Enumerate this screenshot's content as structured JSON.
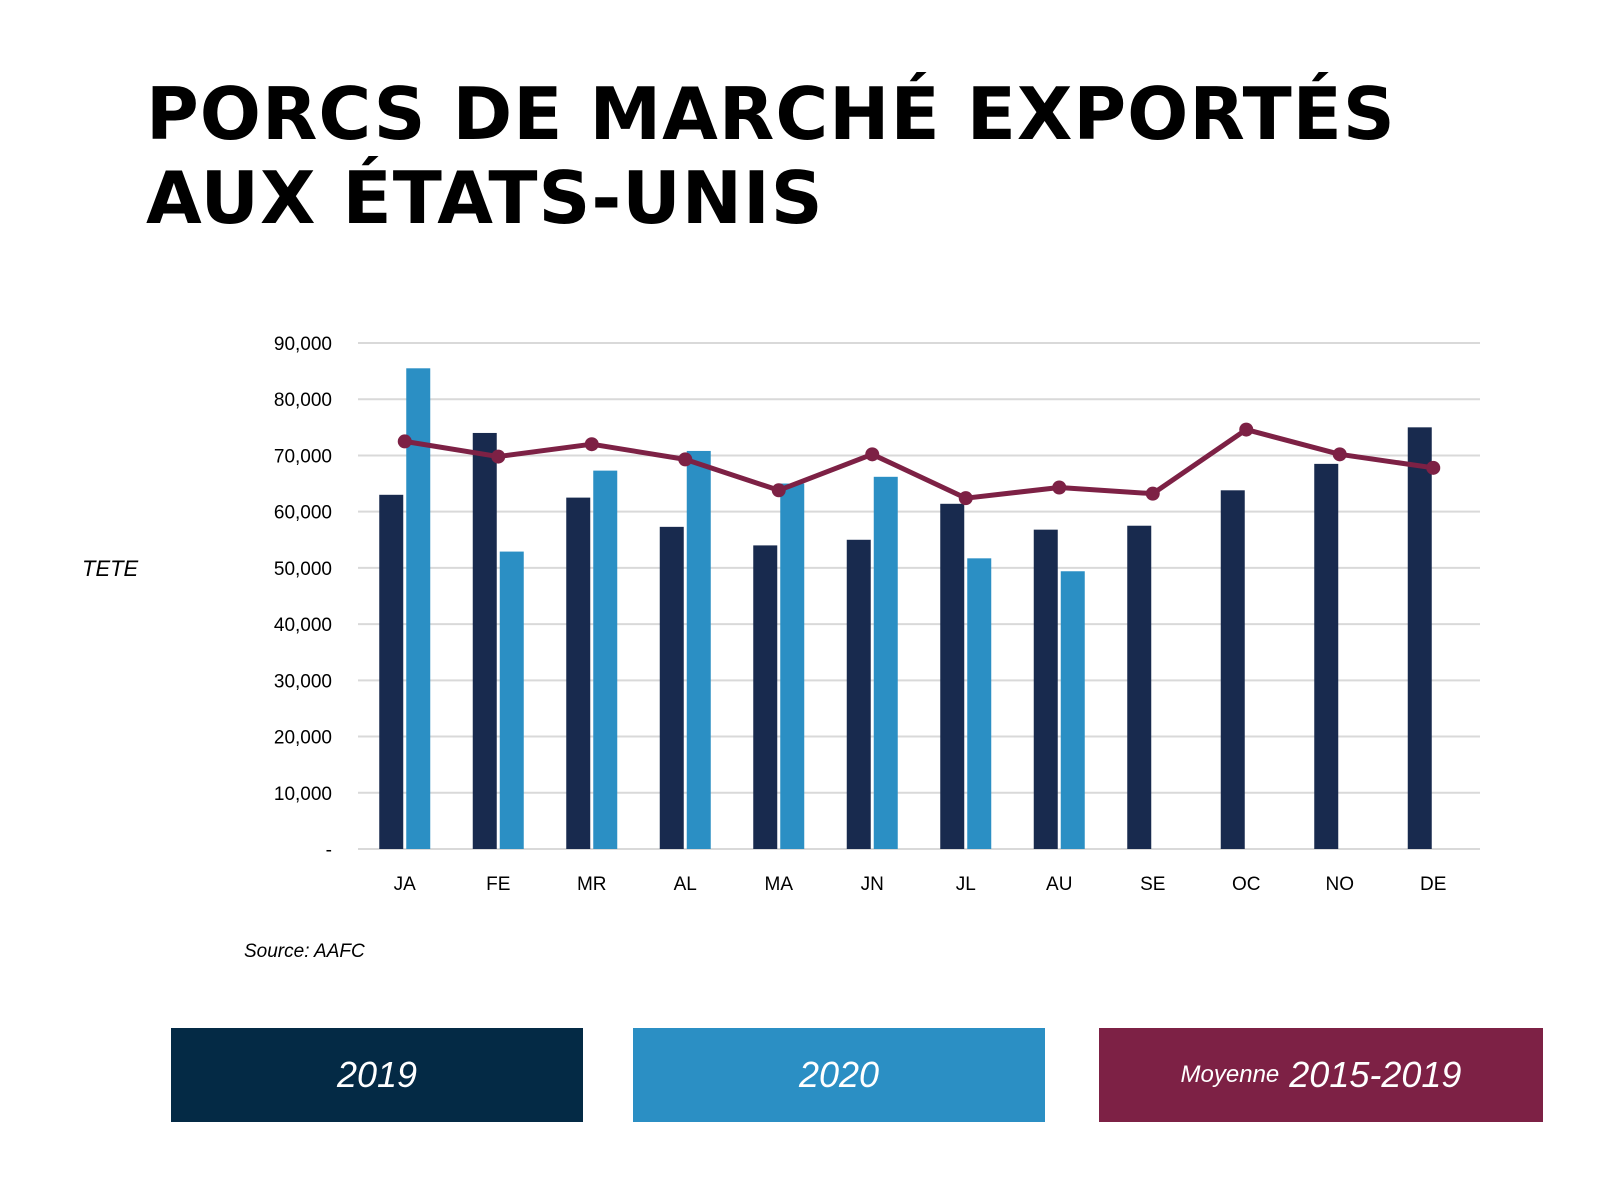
{
  "title_line1": "PORCS DE MARCHÉ EXPORTÉS",
  "title_line2": "AUX ÉTATS-UNIS",
  "source": "Source: AAFC",
  "legend": {
    "s2019": "2019",
    "s2020": "2020",
    "avg_prefix": "Moyenne",
    "avg_years": "2015-2019"
  },
  "colors": {
    "s2019": "#182a4e",
    "s2020": "#2b8fc4",
    "avg": "#7d2145",
    "legend2019": "#042a45",
    "legend2020": "#2b8fc4",
    "legendAvg": "#7d2145",
    "grid": "#d9d9d9"
  },
  "chart_data": {
    "type": "bar",
    "ylabel": "TETE",
    "ylim": [
      0,
      90000
    ],
    "yticks": [
      0,
      10000,
      20000,
      30000,
      40000,
      50000,
      60000,
      70000,
      80000,
      90000
    ],
    "ytick_labels": [
      "-",
      "10,000",
      "20,000",
      "30,000",
      "40,000",
      "50,000",
      "60,000",
      "70,000",
      "80,000",
      "90,000"
    ],
    "categories": [
      "JA",
      "FE",
      "MR",
      "AL",
      "MA",
      "JN",
      "JL",
      "AU",
      "SE",
      "OC",
      "NO",
      "DE"
    ],
    "series": [
      {
        "name": "2019",
        "type": "bar",
        "values": [
          63000,
          74000,
          62500,
          57300,
          54000,
          55000,
          61400,
          56800,
          57500,
          63800,
          68500,
          75000
        ]
      },
      {
        "name": "2020",
        "type": "bar",
        "values": [
          85500,
          52900,
          67300,
          70800,
          65000,
          66200,
          51700,
          49400,
          null,
          null,
          null,
          null
        ]
      },
      {
        "name": "Moyenne 2015-2019",
        "type": "line",
        "values": [
          72500,
          69800,
          72000,
          69300,
          63800,
          70200,
          62400,
          64300,
          63200,
          74600,
          70200,
          67800
        ]
      }
    ],
    "grid": true,
    "legend": "bottom"
  }
}
